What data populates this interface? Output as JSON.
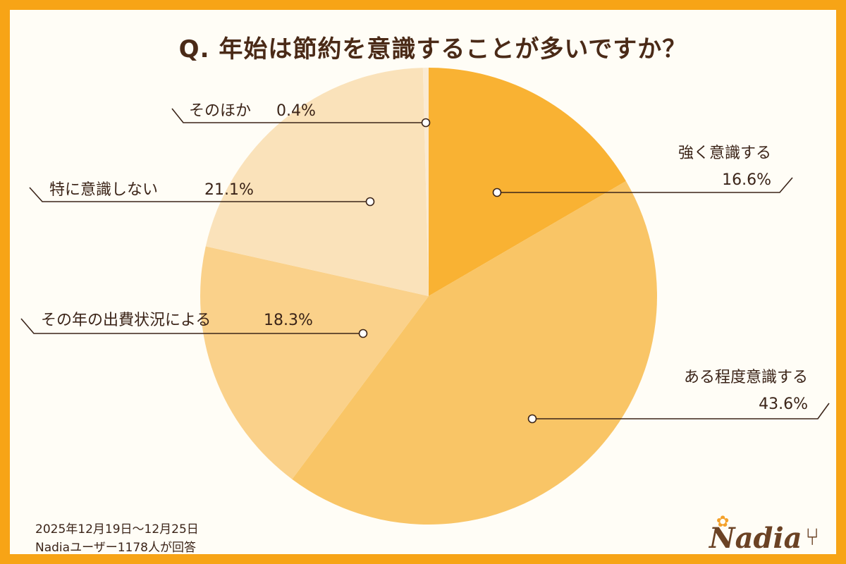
{
  "title": "Q. 年始は節約を意識することが多いですか？",
  "footer": {
    "period": "2025年12月19日～12月25日",
    "respondents": "Nadiaユーザー1178人が回答"
  },
  "logo": {
    "text": "Nadia",
    "icon": "fork-icon"
  },
  "colors": {
    "frame": "#F7A416",
    "background": "#FFFDF6",
    "line": "#3B2418"
  },
  "chart_data": {
    "type": "pie",
    "title": "Q. 年始は節約を意識することが多いですか？",
    "start": "12 o'clock",
    "direction": "clockwise",
    "slices": [
      {
        "label": "強く意識する",
        "value": 16.6,
        "value_label": "16.6%",
        "color": "#F9B233"
      },
      {
        "label": "ある程度意識する",
        "value": 43.6,
        "value_label": "43.6%",
        "color": "#F9C566"
      },
      {
        "label": "その年の出費状況による",
        "value": 18.3,
        "value_label": "18.3%",
        "color": "#FAD18A"
      },
      {
        "label": "特に意識しない",
        "value": 21.1,
        "value_label": "21.1%",
        "color": "#FAE2BA"
      },
      {
        "label": "そのほか",
        "value": 0.4,
        "value_label": "0.4%",
        "color": "#FAEAD2"
      }
    ]
  }
}
